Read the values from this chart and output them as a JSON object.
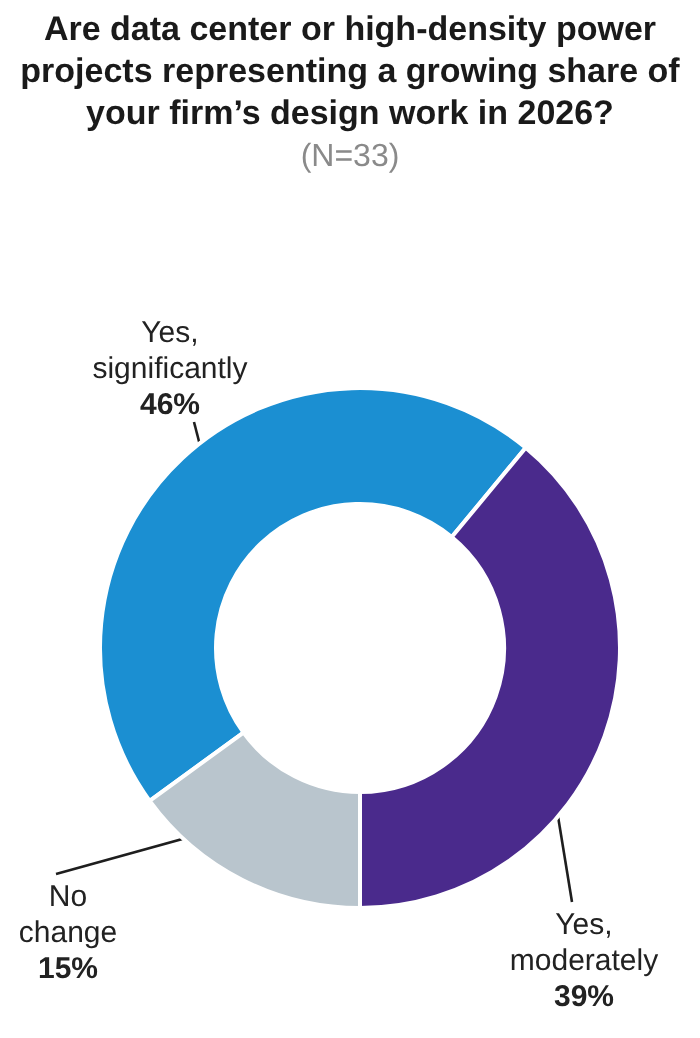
{
  "chart_data": {
    "type": "donut",
    "title": "Are data center or high-density power projects representing a growing share of your firm’s design work in 2026?",
    "subtitle": "(N=33)",
    "categories": [
      "Yes, significantly",
      "Yes, moderately",
      "No change"
    ],
    "values": [
      46,
      39,
      15
    ],
    "value_labels": [
      "46%",
      "39%",
      "15%"
    ],
    "colors": [
      "#1b8fd2",
      "#4a2a8c",
      "#b9c5cd"
    ],
    "legend": false
  }
}
